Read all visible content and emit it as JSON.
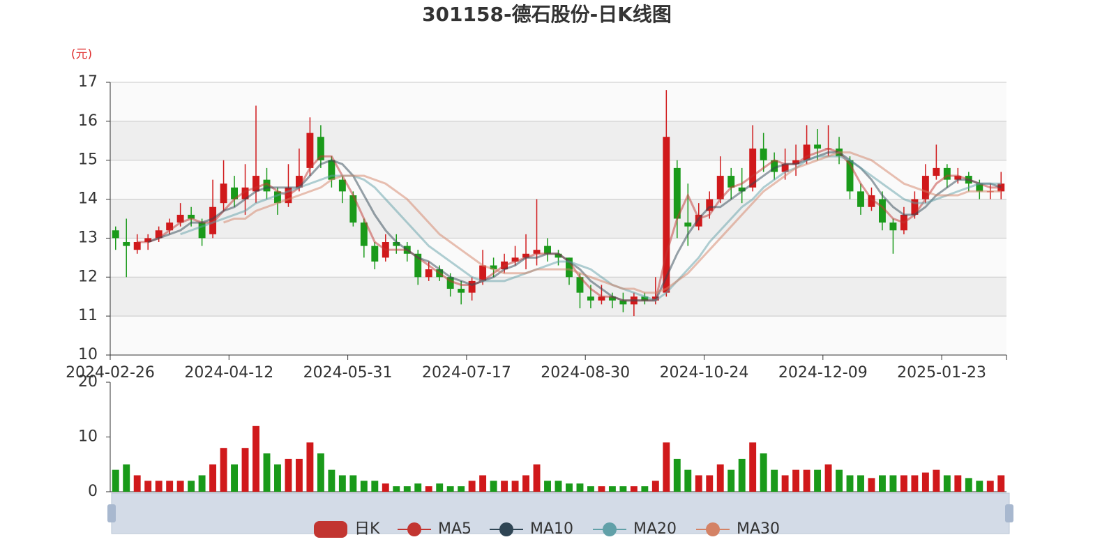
{
  "chart_data": [
    {
      "type": "candlestick",
      "title": "301158-德石股份-日K线图",
      "y_axis_label": "(元)",
      "categories": [
        "2024-02-26",
        null,
        null,
        null,
        null,
        null,
        null,
        null,
        null,
        null,
        null,
        "2024-04-12",
        null,
        null,
        null,
        null,
        null,
        null,
        null,
        null,
        null,
        null,
        "2024-05-31",
        null,
        null,
        null,
        null,
        null,
        null,
        null,
        null,
        null,
        null,
        "2024-07-17",
        null,
        null,
        null,
        null,
        null,
        null,
        null,
        null,
        null,
        null,
        "2024-08-30",
        null,
        null,
        null,
        null,
        null,
        null,
        null,
        null,
        null,
        null,
        "2024-10-24",
        null,
        null,
        null,
        null,
        null,
        null,
        null,
        null,
        null,
        null,
        "2024-12-09",
        null,
        null,
        null,
        null,
        null,
        null,
        null,
        null,
        null,
        null,
        "2025-01-23",
        null,
        null,
        null,
        null,
        null
      ],
      "ylim": [
        10,
        17
      ],
      "yticks": [
        10,
        11,
        12,
        13,
        14,
        15,
        16,
        17
      ],
      "grid": true,
      "legend_position": "bottom",
      "up_color": "#d0191b",
      "down_color": "#1a9a1a",
      "series": [
        {
          "name": "日K",
          "color": "#c23531",
          "values": [
            [
              13.2,
              13.0,
              12.7,
              13.3
            ],
            [
              12.9,
              12.8,
              12.0,
              13.5
            ],
            [
              12.7,
              12.9,
              12.6,
              13.1
            ],
            [
              12.9,
              13.0,
              12.7,
              13.1
            ],
            [
              13.0,
              13.2,
              12.9,
              13.3
            ],
            [
              13.2,
              13.4,
              13.1,
              13.5
            ],
            [
              13.4,
              13.6,
              13.3,
              13.9
            ],
            [
              13.6,
              13.5,
              13.3,
              13.8
            ],
            [
              13.4,
              13.0,
              12.8,
              13.5
            ],
            [
              13.1,
              13.8,
              13.0,
              14.5
            ],
            [
              13.9,
              14.4,
              13.7,
              15.0
            ],
            [
              14.3,
              14.0,
              13.8,
              14.6
            ],
            [
              14.0,
              14.3,
              13.6,
              14.9
            ],
            [
              14.2,
              14.6,
              13.9,
              16.4
            ],
            [
              14.5,
              14.2,
              14.0,
              14.8
            ],
            [
              14.2,
              13.9,
              13.6,
              14.3
            ],
            [
              13.9,
              14.3,
              13.8,
              14.9
            ],
            [
              14.3,
              14.6,
              14.2,
              15.3
            ],
            [
              14.8,
              15.7,
              14.6,
              16.1
            ],
            [
              15.6,
              15.0,
              14.8,
              15.9
            ],
            [
              15.0,
              14.5,
              14.3,
              15.1
            ],
            [
              14.5,
              14.2,
              13.9,
              14.6
            ],
            [
              14.1,
              13.4,
              13.3,
              14.2
            ],
            [
              13.4,
              12.8,
              12.5,
              13.5
            ],
            [
              12.8,
              12.4,
              12.2,
              12.9
            ],
            [
              12.5,
              12.9,
              12.4,
              13.1
            ],
            [
              12.9,
              12.8,
              12.6,
              13.1
            ],
            [
              12.8,
              12.6,
              12.4,
              12.9
            ],
            [
              12.6,
              12.0,
              11.8,
              12.7
            ],
            [
              12.0,
              12.2,
              11.9,
              12.4
            ],
            [
              12.2,
              12.0,
              11.9,
              12.3
            ],
            [
              12.0,
              11.7,
              11.5,
              12.1
            ],
            [
              11.7,
              11.6,
              11.3,
              11.9
            ],
            [
              11.6,
              11.9,
              11.4,
              12.0
            ],
            [
              11.9,
              12.3,
              11.8,
              12.7
            ],
            [
              12.3,
              12.2,
              12.0,
              12.5
            ],
            [
              12.2,
              12.4,
              12.1,
              12.6
            ],
            [
              12.4,
              12.5,
              12.3,
              12.8
            ],
            [
              12.5,
              12.6,
              12.2,
              13.1
            ],
            [
              12.6,
              12.7,
              12.3,
              14.0
            ],
            [
              12.8,
              12.6,
              12.4,
              13.0
            ],
            [
              12.6,
              12.5,
              12.3,
              12.7
            ],
            [
              12.5,
              12.0,
              11.8,
              12.5
            ],
            [
              12.0,
              11.6,
              11.2,
              12.1
            ],
            [
              11.5,
              11.4,
              11.2,
              11.8
            ],
            [
              11.4,
              11.5,
              11.3,
              11.8
            ],
            [
              11.5,
              11.4,
              11.2,
              11.6
            ],
            [
              11.4,
              11.3,
              11.1,
              11.6
            ],
            [
              11.3,
              11.5,
              11.0,
              11.6
            ],
            [
              11.5,
              11.4,
              11.3,
              11.6
            ],
            [
              11.4,
              11.5,
              11.3,
              12.0
            ],
            [
              11.6,
              15.6,
              11.5,
              16.8
            ],
            [
              14.8,
              13.5,
              13.0,
              15.0
            ],
            [
              13.4,
              13.3,
              12.8,
              14.4
            ],
            [
              13.3,
              13.6,
              13.2,
              13.9
            ],
            [
              13.7,
              14.0,
              13.5,
              14.2
            ],
            [
              14.0,
              14.6,
              13.9,
              15.1
            ],
            [
              14.6,
              14.3,
              14.0,
              14.8
            ],
            [
              14.3,
              14.2,
              13.9,
              14.8
            ],
            [
              14.3,
              15.3,
              14.2,
              15.9
            ],
            [
              15.3,
              15.0,
              14.7,
              15.7
            ],
            [
              15.0,
              14.7,
              14.5,
              15.2
            ],
            [
              14.7,
              14.9,
              14.5,
              15.3
            ],
            [
              14.9,
              15.0,
              14.6,
              15.4
            ],
            [
              15.0,
              15.4,
              14.9,
              15.9
            ],
            [
              15.4,
              15.3,
              15.0,
              15.8
            ],
            [
              15.3,
              15.3,
              15.1,
              15.9
            ],
            [
              15.3,
              15.1,
              14.9,
              15.6
            ],
            [
              15.0,
              14.2,
              14.0,
              15.1
            ],
            [
              14.2,
              13.8,
              13.6,
              14.4
            ],
            [
              13.8,
              14.1,
              13.7,
              14.3
            ],
            [
              14.0,
              13.4,
              13.2,
              14.2
            ],
            [
              13.4,
              13.2,
              12.6,
              13.5
            ],
            [
              13.2,
              13.6,
              13.1,
              13.8
            ],
            [
              13.6,
              14.0,
              13.5,
              14.2
            ],
            [
              14.0,
              14.6,
              13.9,
              14.9
            ],
            [
              14.6,
              14.8,
              14.5,
              15.4
            ],
            [
              14.8,
              14.5,
              14.3,
              14.9
            ],
            [
              14.5,
              14.6,
              14.4,
              14.8
            ],
            [
              14.6,
              14.4,
              14.2,
              14.7
            ],
            [
              14.4,
              14.2,
              14.0,
              14.5
            ],
            [
              14.2,
              14.2,
              14.0,
              14.4
            ],
            [
              14.2,
              14.4,
              14.0,
              14.7
            ]
          ]
        },
        {
          "name": "MA5",
          "type": "line",
          "color": "#c23531",
          "values": [
            null,
            null,
            12.9,
            12.9,
            13.0,
            13.2,
            13.4,
            13.5,
            13.4,
            13.4,
            13.7,
            14.0,
            14.2,
            14.3,
            14.4,
            14.2,
            14.1,
            14.3,
            14.8,
            15.1,
            15.1,
            14.6,
            14.1,
            13.5,
            12.9,
            12.7,
            12.7,
            12.7,
            12.5,
            12.3,
            12.1,
            11.9,
            11.8,
            11.8,
            11.9,
            12.1,
            12.3,
            12.4,
            12.5,
            12.6,
            12.6,
            12.6,
            12.4,
            12.0,
            11.7,
            11.5,
            11.5,
            11.4,
            11.4,
            11.4,
            11.4,
            12.6,
            13.5,
            14.1,
            13.5,
            13.6,
            14.0,
            14.3,
            14.4,
            14.6,
            14.8,
            15.0,
            14.9,
            14.9,
            15.1,
            15.2,
            15.3,
            15.2,
            14.9,
            14.4,
            14.0,
            13.8,
            13.5,
            13.4,
            13.6,
            14.0,
            14.4,
            14.6,
            14.6,
            14.5,
            14.4,
            14.3,
            14.3
          ]
        },
        {
          "name": "MA10",
          "type": "line",
          "color": "#2f4554",
          "values": [
            null,
            null,
            null,
            12.9,
            13.0,
            13.1,
            13.2,
            13.4,
            13.4,
            13.5,
            13.7,
            13.8,
            14.0,
            14.2,
            14.3,
            14.3,
            14.3,
            14.3,
            14.6,
            14.9,
            15.0,
            14.9,
            14.6,
            14.1,
            13.6,
            13.2,
            12.9,
            12.7,
            12.5,
            12.4,
            12.2,
            12.0,
            11.9,
            11.8,
            11.9,
            12.0,
            12.2,
            12.3,
            12.5,
            12.5,
            12.6,
            12.6,
            12.4,
            12.2,
            11.9,
            11.7,
            11.5,
            11.4,
            11.4,
            11.4,
            11.4,
            12.0,
            12.6,
            13.1,
            13.5,
            13.8,
            13.8,
            14.0,
            14.2,
            14.4,
            14.6,
            14.8,
            14.9,
            14.9,
            15.0,
            15.1,
            15.2,
            15.2,
            15.0,
            14.8,
            14.5,
            14.1,
            13.8,
            13.6,
            13.6,
            13.8,
            14.1,
            14.3,
            14.5,
            14.5,
            14.4,
            14.4,
            14.3
          ]
        },
        {
          "name": "MA20",
          "type": "line",
          "color": "#61a0a8",
          "values": [
            null,
            null,
            null,
            null,
            null,
            null,
            13.1,
            13.2,
            13.3,
            13.4,
            13.5,
            13.6,
            13.7,
            13.9,
            14.0,
            14.1,
            14.2,
            14.3,
            14.4,
            14.5,
            14.6,
            14.6,
            14.6,
            14.5,
            14.3,
            14.0,
            13.7,
            13.4,
            13.1,
            12.8,
            12.6,
            12.4,
            12.2,
            12.0,
            11.9,
            11.9,
            11.9,
            12.0,
            12.1,
            12.2,
            12.3,
            12.4,
            12.4,
            12.3,
            12.2,
            12.0,
            11.8,
            11.7,
            11.6,
            11.5,
            11.4,
            11.6,
            11.9,
            12.2,
            12.5,
            12.9,
            13.2,
            13.5,
            13.8,
            14.0,
            14.3,
            14.5,
            14.7,
            14.8,
            15.0,
            15.1,
            15.1,
            15.1,
            15.0,
            14.8,
            14.6,
            14.4,
            14.2,
            14.0,
            13.9,
            13.9,
            14.0,
            14.1,
            14.2,
            14.3,
            14.4,
            14.4,
            14.4
          ]
        },
        {
          "name": "MA30",
          "type": "line",
          "color": "#d48265",
          "values": [
            null,
            null,
            null,
            null,
            null,
            null,
            null,
            null,
            null,
            null,
            13.4,
            13.5,
            13.5,
            13.7,
            13.8,
            13.9,
            14.0,
            14.1,
            14.2,
            14.3,
            14.5,
            14.6,
            14.6,
            14.6,
            14.5,
            14.4,
            14.2,
            14.0,
            13.7,
            13.4,
            13.1,
            12.9,
            12.7,
            12.5,
            12.3,
            12.2,
            12.1,
            12.1,
            12.1,
            12.2,
            12.2,
            12.2,
            12.2,
            12.1,
            12.0,
            11.9,
            11.8,
            11.7,
            11.7,
            11.6,
            11.6,
            11.7,
            11.9,
            12.1,
            12.4,
            12.7,
            13.0,
            13.3,
            13.6,
            13.9,
            14.2,
            14.4,
            14.6,
            14.8,
            14.9,
            15.0,
            15.1,
            15.2,
            15.2,
            15.1,
            15.0,
            14.8,
            14.6,
            14.4,
            14.3,
            14.2,
            14.1,
            14.1,
            14.1,
            14.2,
            14.2,
            14.2,
            14.2
          ]
        }
      ]
    },
    {
      "type": "bar",
      "ylim": [
        0,
        20
      ],
      "yticks": [
        0,
        10,
        20
      ],
      "values": [
        4,
        5,
        3,
        2,
        2,
        2,
        2,
        2,
        3,
        5,
        8,
        5,
        8,
        12,
        7,
        5,
        6,
        6,
        9,
        7,
        4,
        3,
        3,
        2,
        2,
        1.5,
        1,
        1,
        1.5,
        1,
        1.5,
        1,
        1,
        2,
        3,
        2,
        2,
        2,
        3,
        5,
        2,
        2,
        1.5,
        1.5,
        1,
        1,
        1,
        1,
        1,
        1,
        2,
        9,
        6,
        4,
        3,
        3,
        5,
        4,
        6,
        9,
        7,
        4,
        3,
        4,
        4,
        4,
        5,
        4,
        3,
        3,
        2.5,
        3,
        3,
        3,
        3,
        3.5,
        4,
        3,
        3,
        2.5,
        2,
        2,
        3
      ]
    }
  ]
}
